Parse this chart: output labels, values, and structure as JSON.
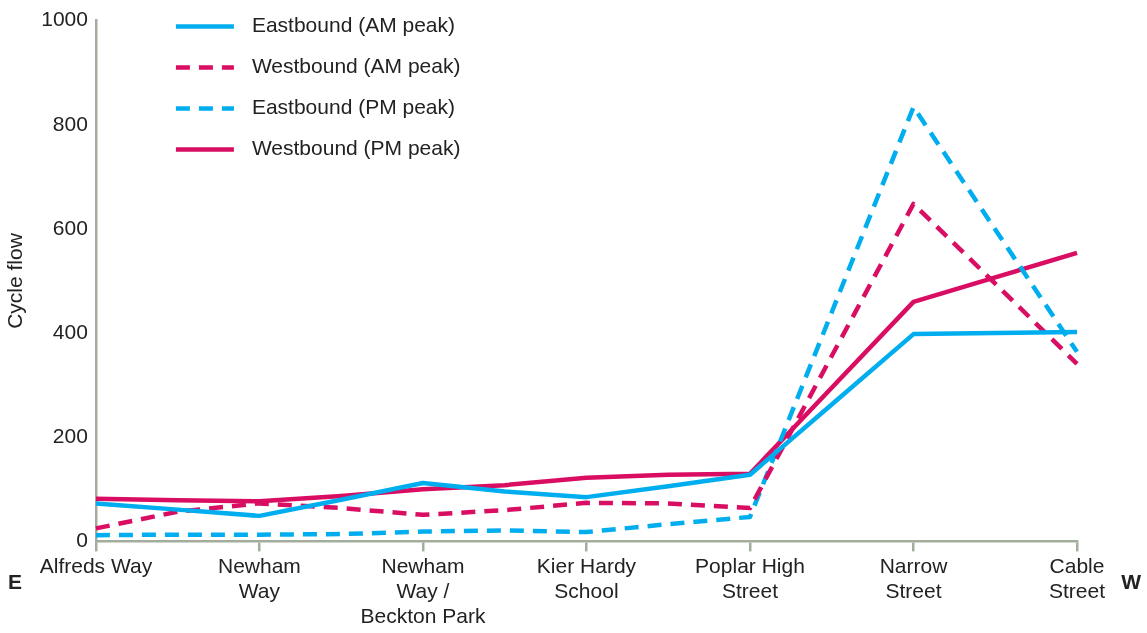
{
  "chart_data": {
    "type": "line",
    "ylabel": "Cycle flow",
    "ylim": [
      0,
      1000
    ],
    "yticks": [
      0,
      200,
      400,
      600,
      800,
      1000
    ],
    "categories": [
      "Alfreds Way",
      null,
      "Newham\nWay",
      null,
      "Newham\nWay /\nBeckton Park",
      null,
      "Kier Hardy\nSchool",
      null,
      "Poplar High\nStreet",
      null,
      "Narrow\nStreet",
      null,
      "Cable\nStreet"
    ],
    "grid": false,
    "legend": "top left",
    "marker": "none",
    "annotations": [
      "E",
      "W"
    ],
    "series": [
      {
        "name": "Eastbound (AM peak)",
        "color": "#00aeef",
        "line_style": "solid",
        "values": [
          73,
          61,
          49,
          80,
          112,
          96,
          85,
          106,
          128,
          263,
          398,
          400,
          402
        ]
      },
      {
        "name": "Westbound (AM peak)",
        "color": "#d90d62",
        "line_style": "dashed",
        "values": [
          25,
          57,
          73,
          64,
          51,
          60,
          74,
          73,
          64,
          356,
          648,
          495,
          341
        ]
      },
      {
        "name": "Eastbound (PM peak)",
        "color": "#00aeef",
        "line_style": "dashed",
        "values": [
          12,
          13,
          13,
          14,
          19,
          21,
          18,
          33,
          47,
          440,
          834,
          599,
          364
        ]
      },
      {
        "name": "Westbound (PM peak)",
        "color": "#d90d62",
        "line_style": "solid",
        "values": [
          82,
          79,
          77,
          87,
          100,
          108,
          122,
          128,
          130,
          295,
          460,
          507,
          554
        ]
      }
    ]
  }
}
